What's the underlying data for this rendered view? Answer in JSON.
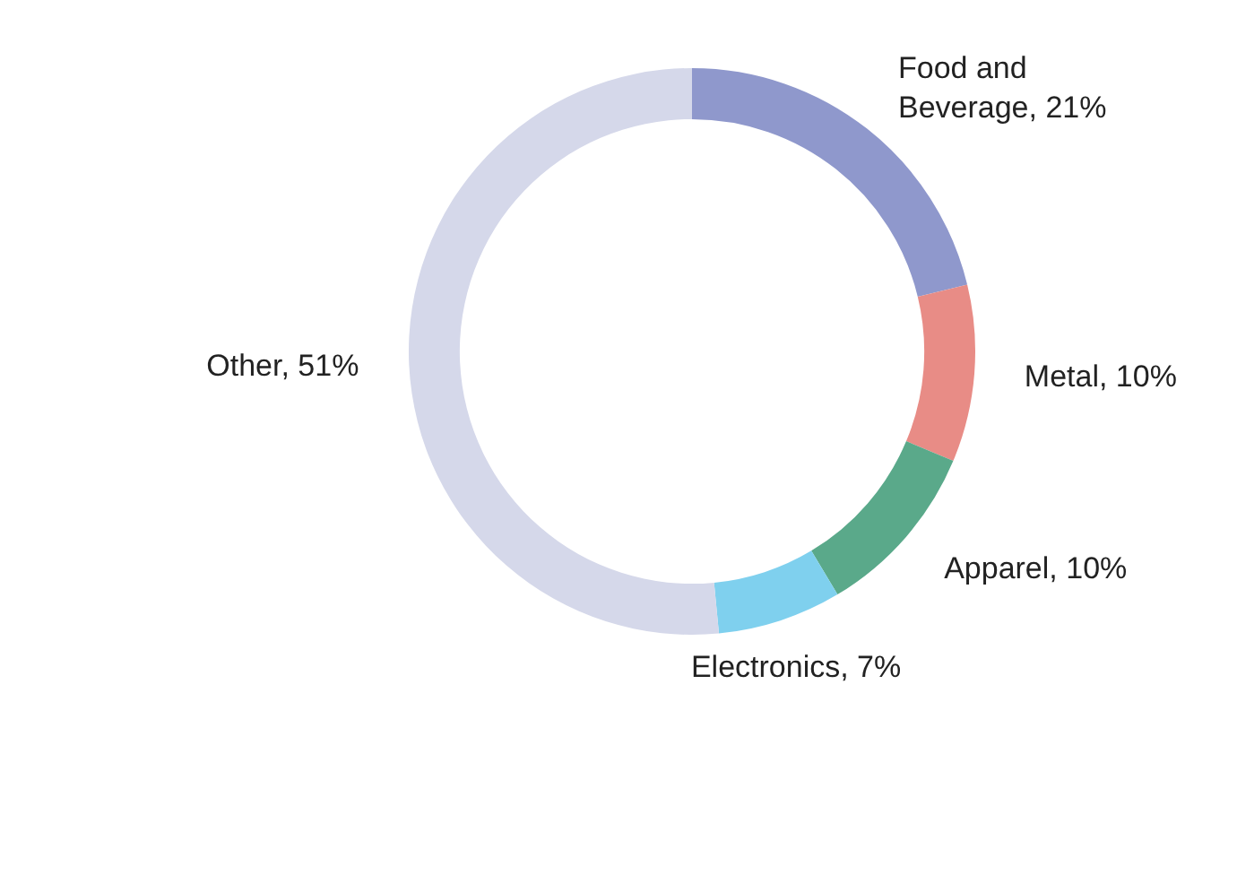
{
  "chart_data": {
    "type": "donut",
    "categories": [
      "Food and Beverage",
      "Metal",
      "Apparel",
      "Electronics",
      "Other"
    ],
    "values": [
      21,
      10,
      10,
      7,
      51
    ],
    "value_labels": [
      "21%",
      "10%",
      "10%",
      "7%",
      "51%"
    ],
    "colors": [
      "#8f98cc",
      "#e88c86",
      "#5aa98a",
      "#7fd0ee",
      "#d5d8ea"
    ],
    "legend": false
  }
}
